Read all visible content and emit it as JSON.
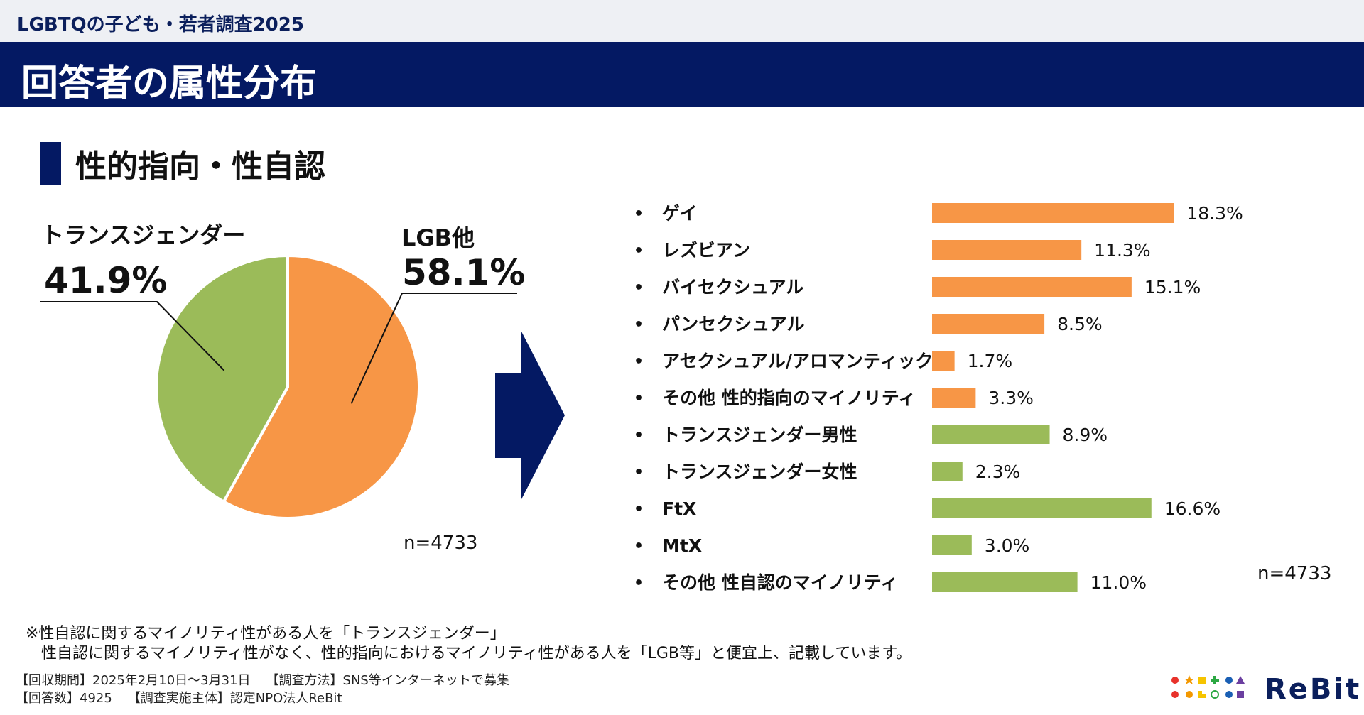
{
  "header": {
    "survey_name": "LGBTQの子ども・若者調査2025",
    "page_title": "回答者の属性分布"
  },
  "section": {
    "title": "性的指向・性自認"
  },
  "chart_data": [
    {
      "type": "pie",
      "slices": [
        {
          "label": "LGB他",
          "value": 58.1,
          "value_label": "58.1%",
          "color": "#f79646"
        },
        {
          "label": "トランスジェンダー",
          "value": 41.9,
          "value_label": "41.9%",
          "color": "#9bbb59"
        }
      ],
      "n_label": "n=4733"
    },
    {
      "type": "bar",
      "orientation": "horizontal",
      "xlim": [
        0,
        20
      ],
      "categories": [
        "ゲイ",
        "レズビアン",
        "バイセクシュアル",
        "パンセクシュアル",
        "アセクシュアル/アロマンティック",
        "その他 性的指向のマイノリティ",
        "トランスジェンダー男性",
        "トランスジェンダー女性",
        "FtX",
        "MtX",
        "その他 性自認のマイノリティ"
      ],
      "values": [
        18.3,
        11.3,
        15.1,
        8.5,
        1.7,
        3.3,
        8.9,
        2.3,
        16.6,
        3.0,
        11.0
      ],
      "value_labels": [
        "18.3%",
        "11.3%",
        "15.1%",
        "8.5%",
        "1.7%",
        "3.3%",
        "8.9%",
        "2.3%",
        "16.6%",
        "3.0%",
        "11.0%"
      ],
      "groups": [
        "LGB",
        "LGB",
        "LGB",
        "LGB",
        "LGB",
        "LGB",
        "T",
        "T",
        "T",
        "T",
        "T"
      ],
      "group_colors": {
        "LGB": "#f79646",
        "T": "#9bbb59"
      },
      "bullet": "•",
      "n_label": "n=4733"
    }
  ],
  "arrow_color": "#041963",
  "footnote": {
    "line1": "※性自認に関するマイノリティ性がある人を「トランスジェンダー」",
    "line2": "　性自認に関するマイノリティ性がなく、性的指向におけるマイノリティ性がある人を「LGB等」と便宜上、記載しています。"
  },
  "meta": {
    "period": "【回収期間】2025年2月10日～3月31日",
    "method": "【調査方法】SNS等インターネットで募集",
    "responses": "【回答数】4925",
    "organizer": "【調査実施主体】認定NPO法人ReBit"
  },
  "logo": {
    "text": "ReBit"
  }
}
